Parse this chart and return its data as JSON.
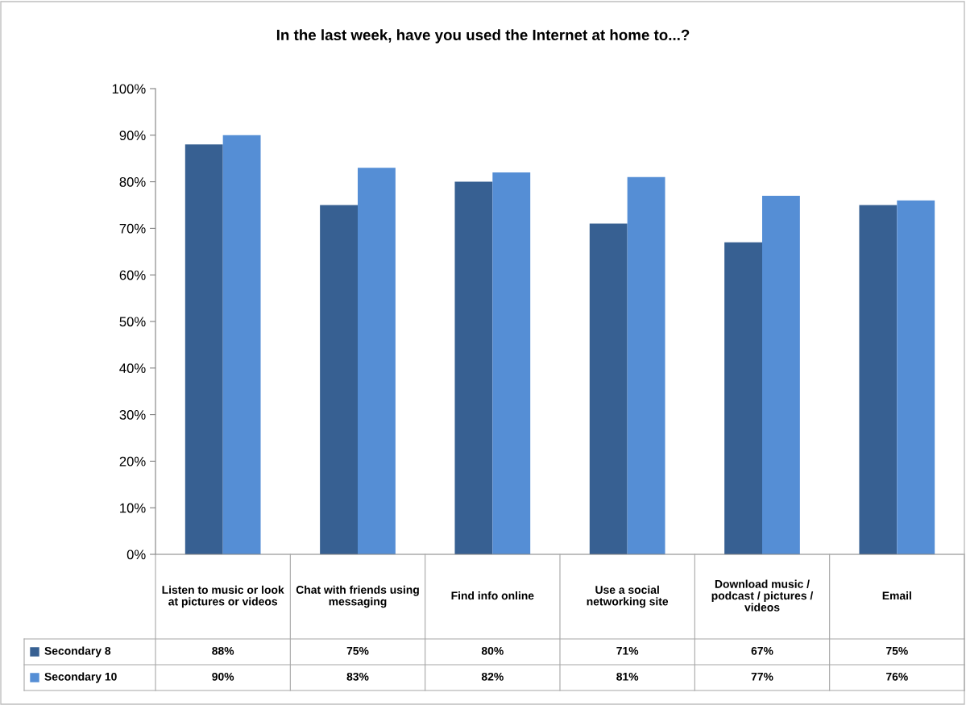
{
  "chart_data": {
    "type": "bar",
    "title": "In the last week, have you used the Internet at home to...?",
    "categories": [
      "Listen to music or look at pictures or videos",
      "Chat with friends using messaging",
      "Find info online",
      "Use a social networking site",
      "Download music / podcast / pictures / videos",
      "Email"
    ],
    "series": [
      {
        "name": "Secondary 8",
        "color": "#376092",
        "values": [
          88,
          75,
          80,
          71,
          67,
          75
        ],
        "value_labels": [
          "88%",
          "75%",
          "80%",
          "71%",
          "67%",
          "75%"
        ]
      },
      {
        "name": "Secondary 10",
        "color": "#558ed5",
        "values": [
          90,
          83,
          82,
          81,
          77,
          76
        ],
        "value_labels": [
          "90%",
          "83%",
          "82%",
          "81%",
          "77%",
          "76%"
        ]
      }
    ],
    "ylim": [
      0,
      100
    ],
    "yticks": [
      {
        "value": 0,
        "label": "0%"
      },
      {
        "value": 10,
        "label": "10%"
      },
      {
        "value": 20,
        "label": "20%"
      },
      {
        "value": 30,
        "label": "30%"
      },
      {
        "value": 40,
        "label": "40%"
      },
      {
        "value": 50,
        "label": "50%"
      },
      {
        "value": 60,
        "label": "60%"
      },
      {
        "value": 70,
        "label": "70%"
      },
      {
        "value": 80,
        "label": "80%"
      },
      {
        "value": 90,
        "label": "90%"
      },
      {
        "value": 100,
        "label": "100%"
      }
    ],
    "legend": "bottom left",
    "data_labels": true
  }
}
